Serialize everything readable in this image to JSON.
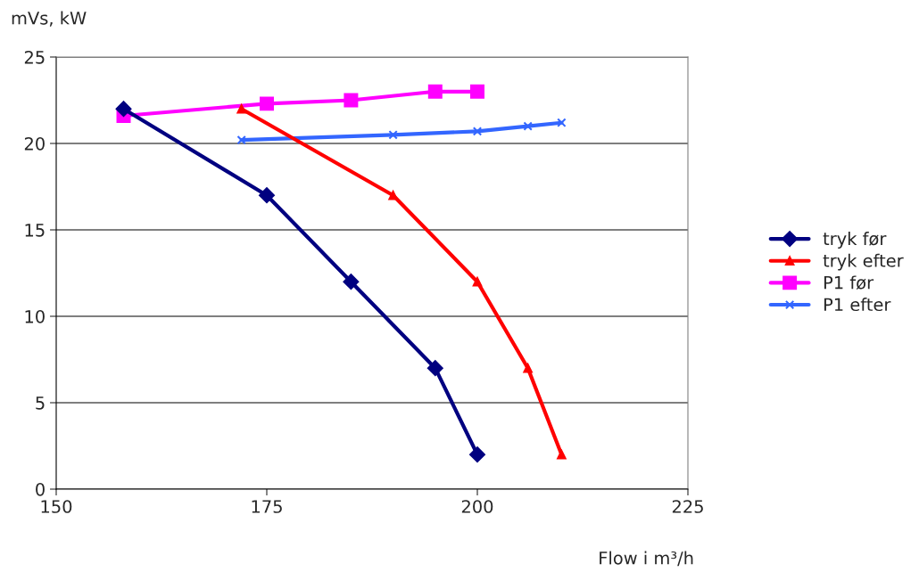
{
  "chart_data": {
    "type": "line",
    "xlabel": "Flow i m³/h",
    "ylabel": "mVs, kW",
    "xlim": [
      150,
      225
    ],
    "xticks": [
      150,
      175,
      200,
      225
    ],
    "ylim": [
      0,
      25
    ],
    "yticks": [
      0,
      5,
      10,
      15,
      20,
      25
    ],
    "grid": "y",
    "legend": "right",
    "line_style": "solid",
    "series": [
      {
        "name": "tryk før",
        "color": "#000080",
        "marker": "diamond",
        "x": [
          158,
          175,
          185,
          195,
          200
        ],
        "values": [
          22,
          17,
          12,
          7,
          2
        ]
      },
      {
        "name": "tryk efter",
        "color": "#ff0000",
        "marker": "triangle",
        "x": [
          172,
          190,
          200,
          206,
          210
        ],
        "values": [
          22,
          17,
          12,
          7,
          2
        ]
      },
      {
        "name": "P1 før",
        "color": "#ff00ff",
        "marker": "square",
        "x": [
          158,
          175,
          185,
          195,
          200
        ],
        "values": [
          21.6,
          22.3,
          22.5,
          23,
          23
        ]
      },
      {
        "name": "P1 efter",
        "color": "#3366ff",
        "marker": "cross",
        "x": [
          172,
          190,
          200,
          206,
          210
        ],
        "values": [
          20.2,
          20.5,
          20.7,
          21,
          21.2
        ]
      }
    ]
  }
}
